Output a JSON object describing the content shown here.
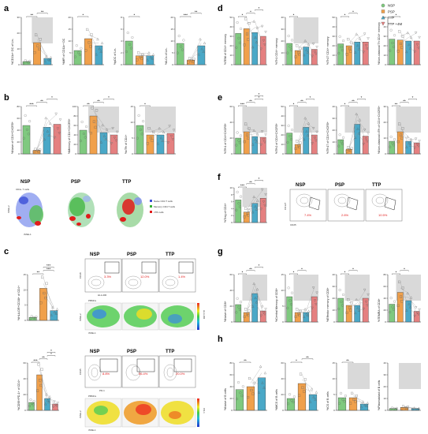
{
  "panel_labels": [
    "a",
    "b",
    "c",
    "d",
    "e",
    "f",
    "g",
    "h"
  ],
  "groups": [
    {
      "name": "NSP",
      "color": "#7fc97f",
      "marker": "circle"
    },
    {
      "name": "PSP",
      "color": "#f0a04b",
      "marker": "square"
    },
    {
      "name": "TTP",
      "color": "#4aa8c7",
      "marker": "triangle"
    },
    {
      "name": "TTP +4M",
      "color": "#e58080",
      "marker": "triangle-down"
    }
  ],
  "chart_data": [
    {
      "panel": "a",
      "type": "bar",
      "ylabel": "%CD11c+ DC of Lin-",
      "ylim": [
        0,
        30
      ],
      "ticks": [
        0,
        10,
        20,
        30
      ],
      "values": [
        2,
        14,
        4
      ],
      "stars": [
        "**",
        "**"
      ]
    },
    {
      "panel": "a",
      "type": "bar",
      "ylabel": "%MFI of CD11c+ DC",
      "ylim": [
        0,
        20
      ],
      "ticks": [
        0,
        5,
        10,
        15,
        20
      ],
      "values": [
        6,
        11,
        8
      ],
      "stars": [
        "*"
      ]
    },
    {
      "panel": "a",
      "type": "bar",
      "ylabel": "%pDC of Lin-",
      "ylim": [
        0,
        8
      ],
      "ticks": [
        0,
        2,
        4,
        6,
        8
      ],
      "values": [
        4,
        1.5,
        1.5
      ],
      "stars": [
        "*"
      ]
    },
    {
      "panel": "a",
      "type": "bar",
      "ylabel": "%ILCs of Lin-",
      "ylim": [
        0,
        20
      ],
      "ticks": [
        0,
        5,
        10,
        15,
        20
      ],
      "values": [
        9,
        2,
        8
      ],
      "stars": [
        "***",
        "**"
      ]
    },
    {
      "panel": "b",
      "type": "bar",
      "ylabel": "%Naive of CD4+CXCR5+",
      "ylim": [
        0,
        80
      ],
      "ticks": [
        0,
        20,
        40,
        60,
        80
      ],
      "values": [
        48,
        6,
        45,
        50
      ],
      "stars": [
        "***",
        "**",
        "*"
      ]
    },
    {
      "panel": "b",
      "type": "bar",
      "ylabel": "%Memory of CD4+CXCR5+",
      "ylim": [
        0,
        100
      ],
      "ticks": [
        0,
        20,
        40,
        60,
        80,
        100
      ],
      "values": [
        50,
        80,
        45,
        40
      ],
      "stars": [
        "**",
        "**",
        "*"
      ]
    },
    {
      "panel": "b",
      "type": "bar",
      "ylabel": "%cTfh of CD4+",
      "ylim": [
        0,
        15
      ],
      "ticks": [
        0,
        5,
        10,
        15
      ],
      "values": [
        9,
        6,
        6,
        6.5
      ],
      "stars": [
        "*"
      ]
    },
    {
      "panel": "c",
      "type": "bar",
      "ylabel": "%HLA-DR+CD38+ of CD4+",
      "ylim": [
        0,
        15
      ],
      "ticks": [
        0,
        5,
        10,
        15
      ],
      "values": [
        1,
        10.5,
        3.2
      ],
      "stars": [
        "**",
        "***",
        "***"
      ]
    },
    {
      "panel": "c",
      "type": "bar",
      "ylabel": "%CD95+PD-1+ of CD4+",
      "ylim": [
        0,
        60
      ],
      "ticks": [
        0,
        20,
        40,
        60
      ],
      "values": [
        10,
        45,
        15,
        8
      ],
      "stars": [
        "***",
        "**",
        "*",
        "*"
      ]
    },
    {
      "panel": "d",
      "type": "bar",
      "ylabel": "%TEM of CD4+ memory",
      "ylim": [
        0,
        50
      ],
      "ticks": [
        0,
        10,
        20,
        30,
        40,
        50
      ],
      "values": [
        33,
        38,
        34,
        30
      ],
      "stars": [
        "*",
        "*",
        "*"
      ]
    },
    {
      "panel": "d",
      "type": "bar",
      "ylabel": "%Th1 CD4+ memory",
      "ylim": [
        0,
        40
      ],
      "ticks": [
        0,
        10,
        20,
        30,
        40
      ],
      "values": [
        18,
        12,
        15,
        13
      ],
      "stars": [
        "*"
      ]
    },
    {
      "panel": "d",
      "type": "bar",
      "ylabel": "%Th17 CD4+ memory",
      "ylim": [
        0,
        50
      ],
      "ticks": [
        0,
        10,
        20,
        30,
        40,
        50
      ],
      "values": [
        22,
        20,
        24,
        24
      ],
      "stars": [
        "*",
        "*"
      ]
    },
    {
      "panel": "d",
      "type": "bar",
      "ylabel": "%Non-classical Th CD4+ memory",
      "ylim": [
        0,
        50
      ],
      "ticks": [
        0,
        10,
        20,
        30,
        40,
        50
      ],
      "values": [
        27,
        26,
        25,
        25
      ],
      "stars": [
        "*"
      ]
    },
    {
      "panel": "e",
      "type": "bar",
      "ylabel": "%Tfh1 of CD4+CXCR5+",
      "ylim": [
        0,
        60
      ],
      "ticks": [
        0,
        20,
        40,
        60
      ],
      "values": [
        20,
        28,
        22,
        21
      ],
      "stars": [
        "***",
        "**",
        "*",
        "*"
      ]
    },
    {
      "panel": "e",
      "type": "bar",
      "ylabel": "%Tfh2 of CD4+CXCR5+",
      "ylim": [
        0,
        50
      ],
      "ticks": [
        0,
        10,
        20,
        30,
        40,
        50
      ],
      "values": [
        22,
        10,
        28,
        20
      ],
      "stars": [
        "*",
        "**",
        "*"
      ]
    },
    {
      "panel": "e",
      "type": "bar",
      "ylabel": "%Tfh17 of CD4+CXCR5+",
      "ylim": [
        0,
        40
      ],
      "ticks": [
        0,
        10,
        20,
        30,
        40
      ],
      "values": [
        12,
        4,
        25,
        15
      ],
      "stars": [
        "*",
        "**",
        "*"
      ]
    },
    {
      "panel": "e",
      "type": "bar",
      "ylabel": "%Non-classical cTfh of CD4+CXCR5+",
      "ylim": [
        0,
        30
      ],
      "ticks": [
        0,
        10,
        20,
        30
      ],
      "values": [
        8,
        14,
        8,
        7
      ],
      "stars": [
        "**",
        "**",
        "*"
      ]
    },
    {
      "panel": "f",
      "type": "bar",
      "ylabel": "%Treg of CD4+",
      "ylim": [
        0,
        10
      ],
      "ticks": [
        0,
        2,
        4,
        6,
        8,
        10
      ],
      "values": [
        6.5,
        3,
        5.5,
        7
      ],
      "stars": [
        "***",
        "**",
        "*"
      ]
    },
    {
      "panel": "g",
      "type": "bar",
      "ylabel": "%Naive of CD8+",
      "ylim": [
        0,
        60
      ],
      "ticks": [
        0,
        20,
        40,
        60
      ],
      "values": [
        22,
        12,
        36,
        14
      ],
      "stars": [
        "*",
        "**",
        "*"
      ]
    },
    {
      "panel": "g",
      "type": "bar",
      "ylabel": "%Central Memory of CD8+",
      "ylim": [
        0,
        15
      ],
      "ticks": [
        0,
        5,
        10,
        15
      ],
      "values": [
        8,
        3,
        3,
        8
      ],
      "stars": [
        "*",
        "*"
      ]
    },
    {
      "panel": "g",
      "type": "bar",
      "ylabel": "%Effector memory of CD8+",
      "ylim": [
        0,
        40
      ],
      "ticks": [
        0,
        10,
        20,
        30,
        40
      ],
      "values": [
        20,
        14,
        14,
        20
      ],
      "stars": [
        "*",
        "*"
      ]
    },
    {
      "panel": "g",
      "type": "bar",
      "ylabel": "%TEMRA of CD8+",
      "ylim": [
        0,
        80
      ],
      "ticks": [
        0,
        20,
        40,
        60,
        80
      ],
      "values": [
        30,
        50,
        36,
        18
      ],
      "stars": [
        "*",
        "*"
      ]
    },
    {
      "panel": "h",
      "type": "bar",
      "ylabel": "%Naive of B cells",
      "ylim": [
        0,
        80
      ],
      "ticks": [
        0,
        20,
        40,
        60,
        80
      ],
      "values": [
        35,
        40,
        55
      ],
      "stars": [
        "**"
      ]
    },
    {
      "panel": "h",
      "type": "bar",
      "ylabel": "%MCS of B cells",
      "ylim": [
        0,
        60
      ],
      "ticks": [
        0,
        20,
        40,
        60
      ],
      "values": [
        15,
        34,
        20
      ],
      "stars": [
        "*",
        "**"
      ]
    },
    {
      "panel": "h",
      "type": "bar",
      "ylabel": "%CS of B cells",
      "ylim": [
        0,
        15
      ],
      "ticks": [
        0,
        5,
        10,
        15
      ],
      "values": [
        4,
        4,
        2
      ],
      "stars": [
        "**"
      ]
    },
    {
      "panel": "h",
      "type": "bar",
      "ylabel": "%Plasmablast of B cells",
      "ylim": [
        0,
        40
      ],
      "ticks": [
        0,
        10,
        20,
        30,
        40
      ],
      "values": [
        1.5,
        2.5,
        1.5
      ],
      "stars": []
    }
  ],
  "tsne_b": {
    "title": "CD4+ T cells",
    "ylabel": "tSNE-2",
    "xlabel": "tSNE-1",
    "labels": [
      "NSP",
      "PSP",
      "TTP"
    ],
    "legend": [
      "Naive CD4 T cells",
      "Memory CD4 T cells",
      "cTfh cells"
    ],
    "legend_colors": [
      "#3b4fd6",
      "#35b035",
      "#e11b1b"
    ]
  },
  "flow_c1": {
    "labels": [
      "NSP",
      "PSP",
      "TTP"
    ],
    "percents": [
      "3.3%",
      "12.0%",
      "1.4%"
    ],
    "xaxis": "HLA-DR",
    "yaxis": "CD38",
    "pbmc": "PBMCs",
    "tsne_y": "tSNE-2",
    "tsne_x": "tSNE-1",
    "scale": "HLA-DR"
  },
  "flow_c2": {
    "labels": [
      "NSP",
      "PSP",
      "TTP"
    ],
    "percents": [
      "8.8%",
      "56.4%",
      "20.0%"
    ],
    "xaxis": "PD-1",
    "yaxis": "CD95",
    "pbmc": "PBMCs",
    "tsne_y": "tSNE-2",
    "tsne_x": "tSNE-1",
    "scale": "PD-1"
  },
  "flow_f": {
    "labels": [
      "NSP",
      "PSP",
      "TTP"
    ],
    "percents": [
      "7.4%",
      "2.6%",
      "10.5%"
    ],
    "xaxis": "CD25",
    "yaxis": "CD127"
  }
}
